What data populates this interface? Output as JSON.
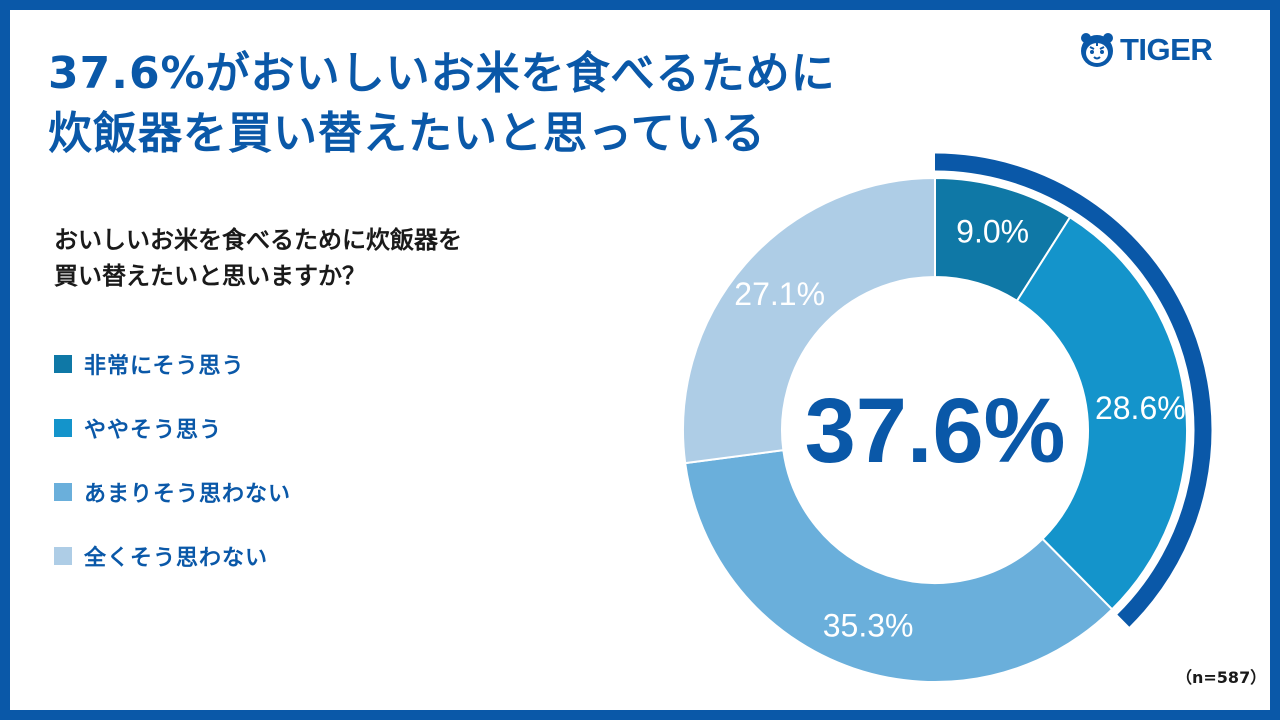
{
  "brand": {
    "name": "TIGER",
    "color": "#0a58a8"
  },
  "headline": {
    "line1": "37.6%がおいしいお米を食べるために",
    "line2": "炊飯器を買い替えたいと思っている"
  },
  "question": {
    "line1": "おいしいお米を食べるために炊飯器を",
    "line2": "買い替えたいと思いますか？"
  },
  "sample_note": "（n=587）",
  "center_value": "37.6%",
  "chart_data": {
    "type": "pie",
    "subtype": "donut",
    "center_label": "37.6%",
    "highlight": {
      "segments": [
        "非常にそう思う",
        "ややそう思う"
      ],
      "total": "37.6%",
      "color": "#0a58a8"
    },
    "categories": [
      "非常にそう思う",
      "ややそう思う",
      "あまりそう思わない",
      "全くそう思わない"
    ],
    "values": [
      9.0,
      28.6,
      35.3,
      27.1
    ],
    "labels": [
      "9.0%",
      "28.6%",
      "35.3%",
      "27.1%"
    ],
    "colors": [
      "#0f78a6",
      "#1494cb",
      "#6aafdb",
      "#aecde6"
    ],
    "legend_position": "left"
  }
}
